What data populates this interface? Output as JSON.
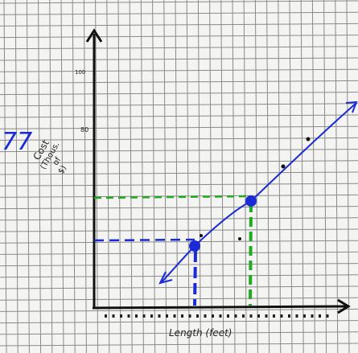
{
  "annotation": "77",
  "y_axis": {
    "label_lines": [
      "Cost",
      "(Thous.",
      "of",
      "$)"
    ],
    "tick_labels": [
      "100",
      "80"
    ]
  },
  "x_axis": {
    "label": "Length (feet)"
  }
}
